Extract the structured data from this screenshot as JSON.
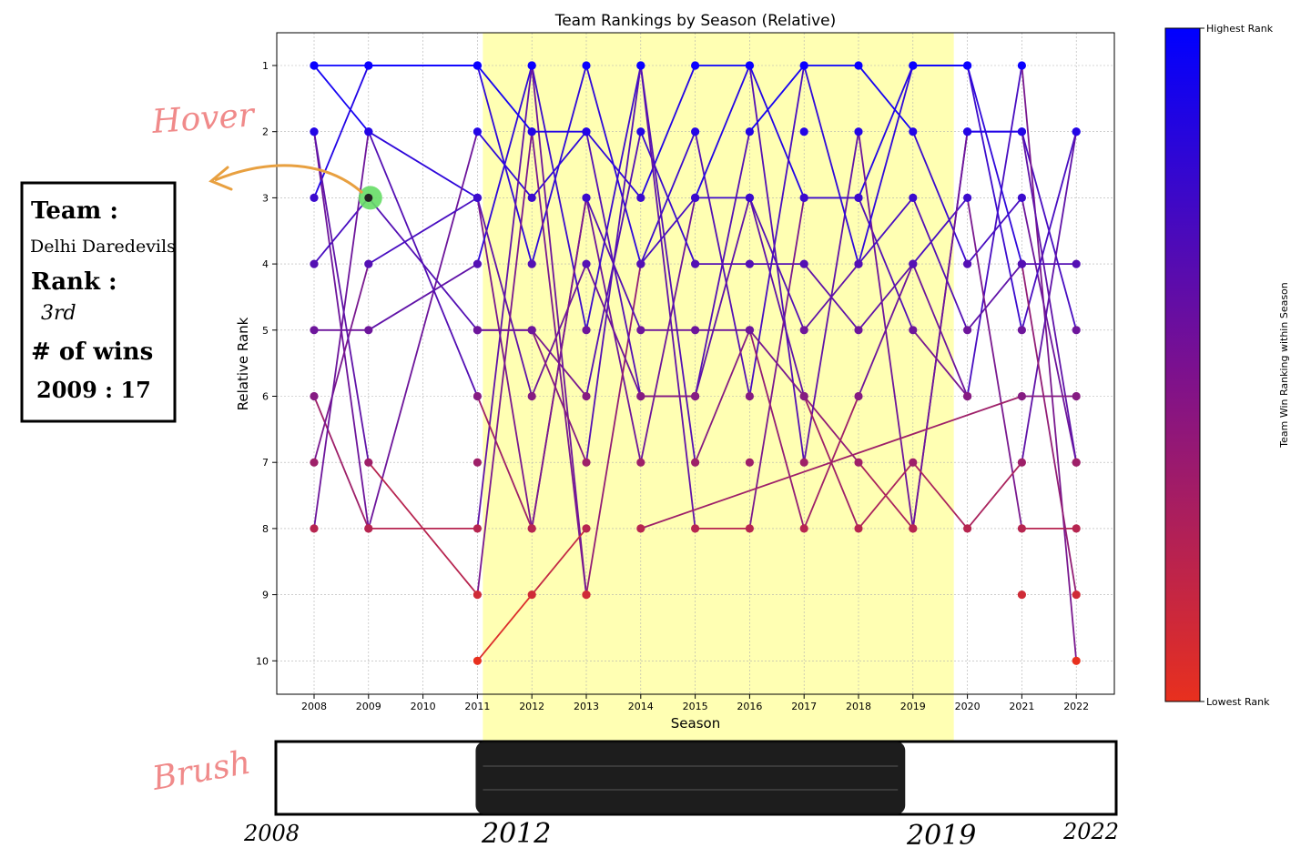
{
  "chart_data": {
    "type": "line",
    "title": "Team Rankings by Season (Relative)",
    "xlabel": "Season",
    "ylabel": "Relative Rank",
    "x": [
      2008,
      2009,
      2010,
      2011,
      2012,
      2013,
      2014,
      2015,
      2016,
      2017,
      2018,
      2019,
      2020,
      2021,
      2022
    ],
    "y_ticks": [
      1,
      2,
      3,
      4,
      5,
      6,
      7,
      8,
      9,
      10
    ],
    "ylim": [
      10.5,
      0.5
    ],
    "grid": true,
    "highlight_range": [
      2011.1,
      2019.75
    ],
    "series": [
      {
        "values": [
          1,
          2,
          null,
          3,
          8,
          3,
          7,
          3,
          3,
          6,
          7,
          8,
          2,
          2,
          5
        ]
      },
      {
        "values": [
          2,
          8,
          null,
          2,
          3,
          2,
          3,
          1,
          1,
          3,
          3,
          5,
          6,
          1,
          10
        ]
      },
      {
        "values": [
          3,
          1,
          null,
          1,
          4,
          1,
          4,
          2,
          6,
          1,
          1,
          2,
          4,
          3,
          7
        ]
      },
      {
        "values": [
          4,
          3,
          null,
          5,
          5,
          6,
          2,
          4,
          4,
          4,
          5,
          4,
          3,
          8,
          8
        ]
      },
      {
        "values": [
          5,
          5,
          null,
          4,
          1,
          5,
          1,
          8,
          8,
          3,
          3,
          1,
          1,
          5,
          2
        ]
      },
      {
        "values": [
          6,
          8,
          null,
          8,
          1,
          9,
          4,
          3,
          1,
          7,
          2,
          8,
          2,
          2,
          7
        ]
      },
      {
        "values": [
          7,
          4,
          null,
          3,
          6,
          4,
          6,
          6,
          2,
          1,
          4,
          3,
          5,
          4,
          4
        ]
      },
      {
        "values": [
          8,
          2,
          null,
          6,
          8,
          3,
          5,
          5,
          5,
          6,
          8,
          7,
          8,
          7,
          2
        ]
      },
      {
        "values": [
          2,
          7,
          null,
          9,
          2,
          9,
          null,
          null,
          null,
          null,
          null,
          null,
          null,
          null,
          null
        ]
      },
      {
        "values": [
          null,
          null,
          null,
          10,
          9,
          8,
          null,
          null,
          null,
          null,
          null,
          null,
          null,
          null,
          null
        ]
      },
      {
        "values": [
          null,
          null,
          null,
          5,
          5,
          7,
          1,
          7,
          5,
          8,
          6,
          4,
          6,
          null,
          null
        ]
      },
      {
        "values": [
          null,
          null,
          null,
          null,
          null,
          null,
          8,
          null,
          null,
          null,
          null,
          null,
          null,
          6,
          6
        ]
      },
      {
        "values": [
          1,
          1,
          null,
          1,
          2,
          2,
          6,
          6,
          3,
          5,
          4,
          1,
          1,
          4,
          9
        ]
      }
    ],
    "scatter_extra": [
      {
        "x": 2011,
        "y": 7
      },
      {
        "x": 2016,
        "y": 7
      },
      {
        "x": 2017,
        "y": 2
      },
      {
        "x": 2021,
        "y": 9
      }
    ],
    "colorbar": {
      "label": "Team Win Ranking within Season",
      "top_label": "Highest Rank",
      "bottom_label": "Lowest Rank",
      "top_color": "#0000ff",
      "bottom_color": "#e8301e"
    },
    "annotations": {
      "hover_label": "Hover",
      "brush_label": "Brush",
      "hover_highlight": {
        "x": 2009,
        "y": 3
      },
      "tooltip": {
        "team_label": "Team :",
        "team_value": "Delhi Daredevils",
        "rank_label": "Rank :",
        "rank_value": "3rd",
        "wins_label": "# of wins",
        "wins_value": "2009 : 17"
      },
      "brush": {
        "start_label": "2008",
        "sel_start_label": "2012",
        "sel_end_label": "2019",
        "end_label": "2022",
        "sel_start": 2012,
        "sel_end": 2019
      }
    },
    "colors": {
      "hover_label": "#f08a8a",
      "brush_label": "#f08a8a",
      "arrow": "#e8a040",
      "highlight_band": "#ffff99",
      "hover_dot": "#66dd66"
    }
  }
}
